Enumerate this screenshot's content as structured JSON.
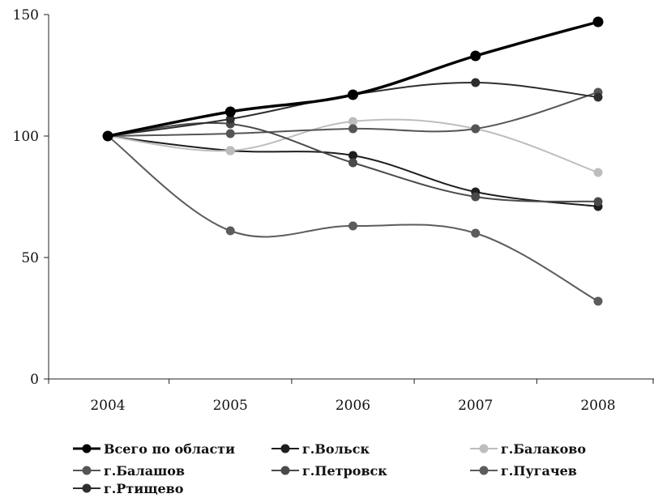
{
  "chart_data": {
    "type": "line",
    "title": "",
    "xlabel": "",
    "ylabel": "",
    "categories": [
      "2004",
      "2005",
      "2006",
      "2007",
      "2008"
    ],
    "ylim": [
      0,
      150
    ],
    "yticks": [
      0,
      50,
      100,
      150
    ],
    "y_tick_labels": [
      "0",
      "50",
      "100",
      "150"
    ],
    "grid": false,
    "legend_position": "bottom",
    "series": [
      {
        "name": "Всего по области",
        "values": [
          100,
          110,
          117,
          133,
          147
        ],
        "color": "#000000",
        "emphasis": true
      },
      {
        "name": "г.Вольск",
        "values": [
          100,
          94,
          92,
          77,
          71
        ],
        "color": "#1e1e1e"
      },
      {
        "name": "г.Балаково",
        "values": [
          100,
          94,
          106,
          103,
          85
        ],
        "color": "#bdbdbd"
      },
      {
        "name": "г.Балашов",
        "values": [
          100,
          101,
          103,
          103,
          118
        ],
        "color": "#555555"
      },
      {
        "name": "г.Петровск",
        "values": [
          100,
          105,
          89,
          75,
          73
        ],
        "color": "#4a4a4a"
      },
      {
        "name": "г.Пугачев",
        "values": [
          100,
          61,
          63,
          60,
          32
        ],
        "color": "#5c5c5c"
      },
      {
        "name": "г.Ртищево",
        "values": [
          100,
          107,
          117,
          122,
          116
        ],
        "color": "#2e2e2e"
      }
    ]
  }
}
